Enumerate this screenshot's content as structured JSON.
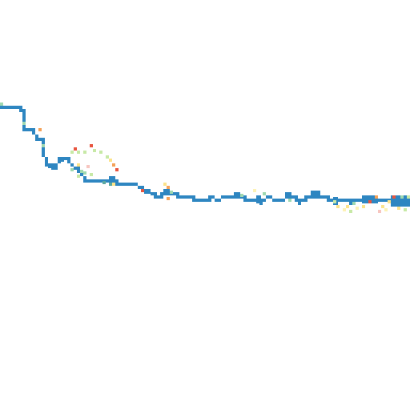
{
  "map": {
    "colors": {
      "background": "#ffffff",
      "route": "#2e86c1",
      "route_teal": "#5ba8a0",
      "marker_red": "#e8553f",
      "marker_orange": "#f4a259",
      "marker_yellow": "#fce38a",
      "marker_light_yellow": "#fdf2b5",
      "marker_green": "#c7e9a6",
      "marker_mint": "#9fd8b0",
      "marker_pink": "#f7c6c0"
    },
    "cell_size": 4
  }
}
